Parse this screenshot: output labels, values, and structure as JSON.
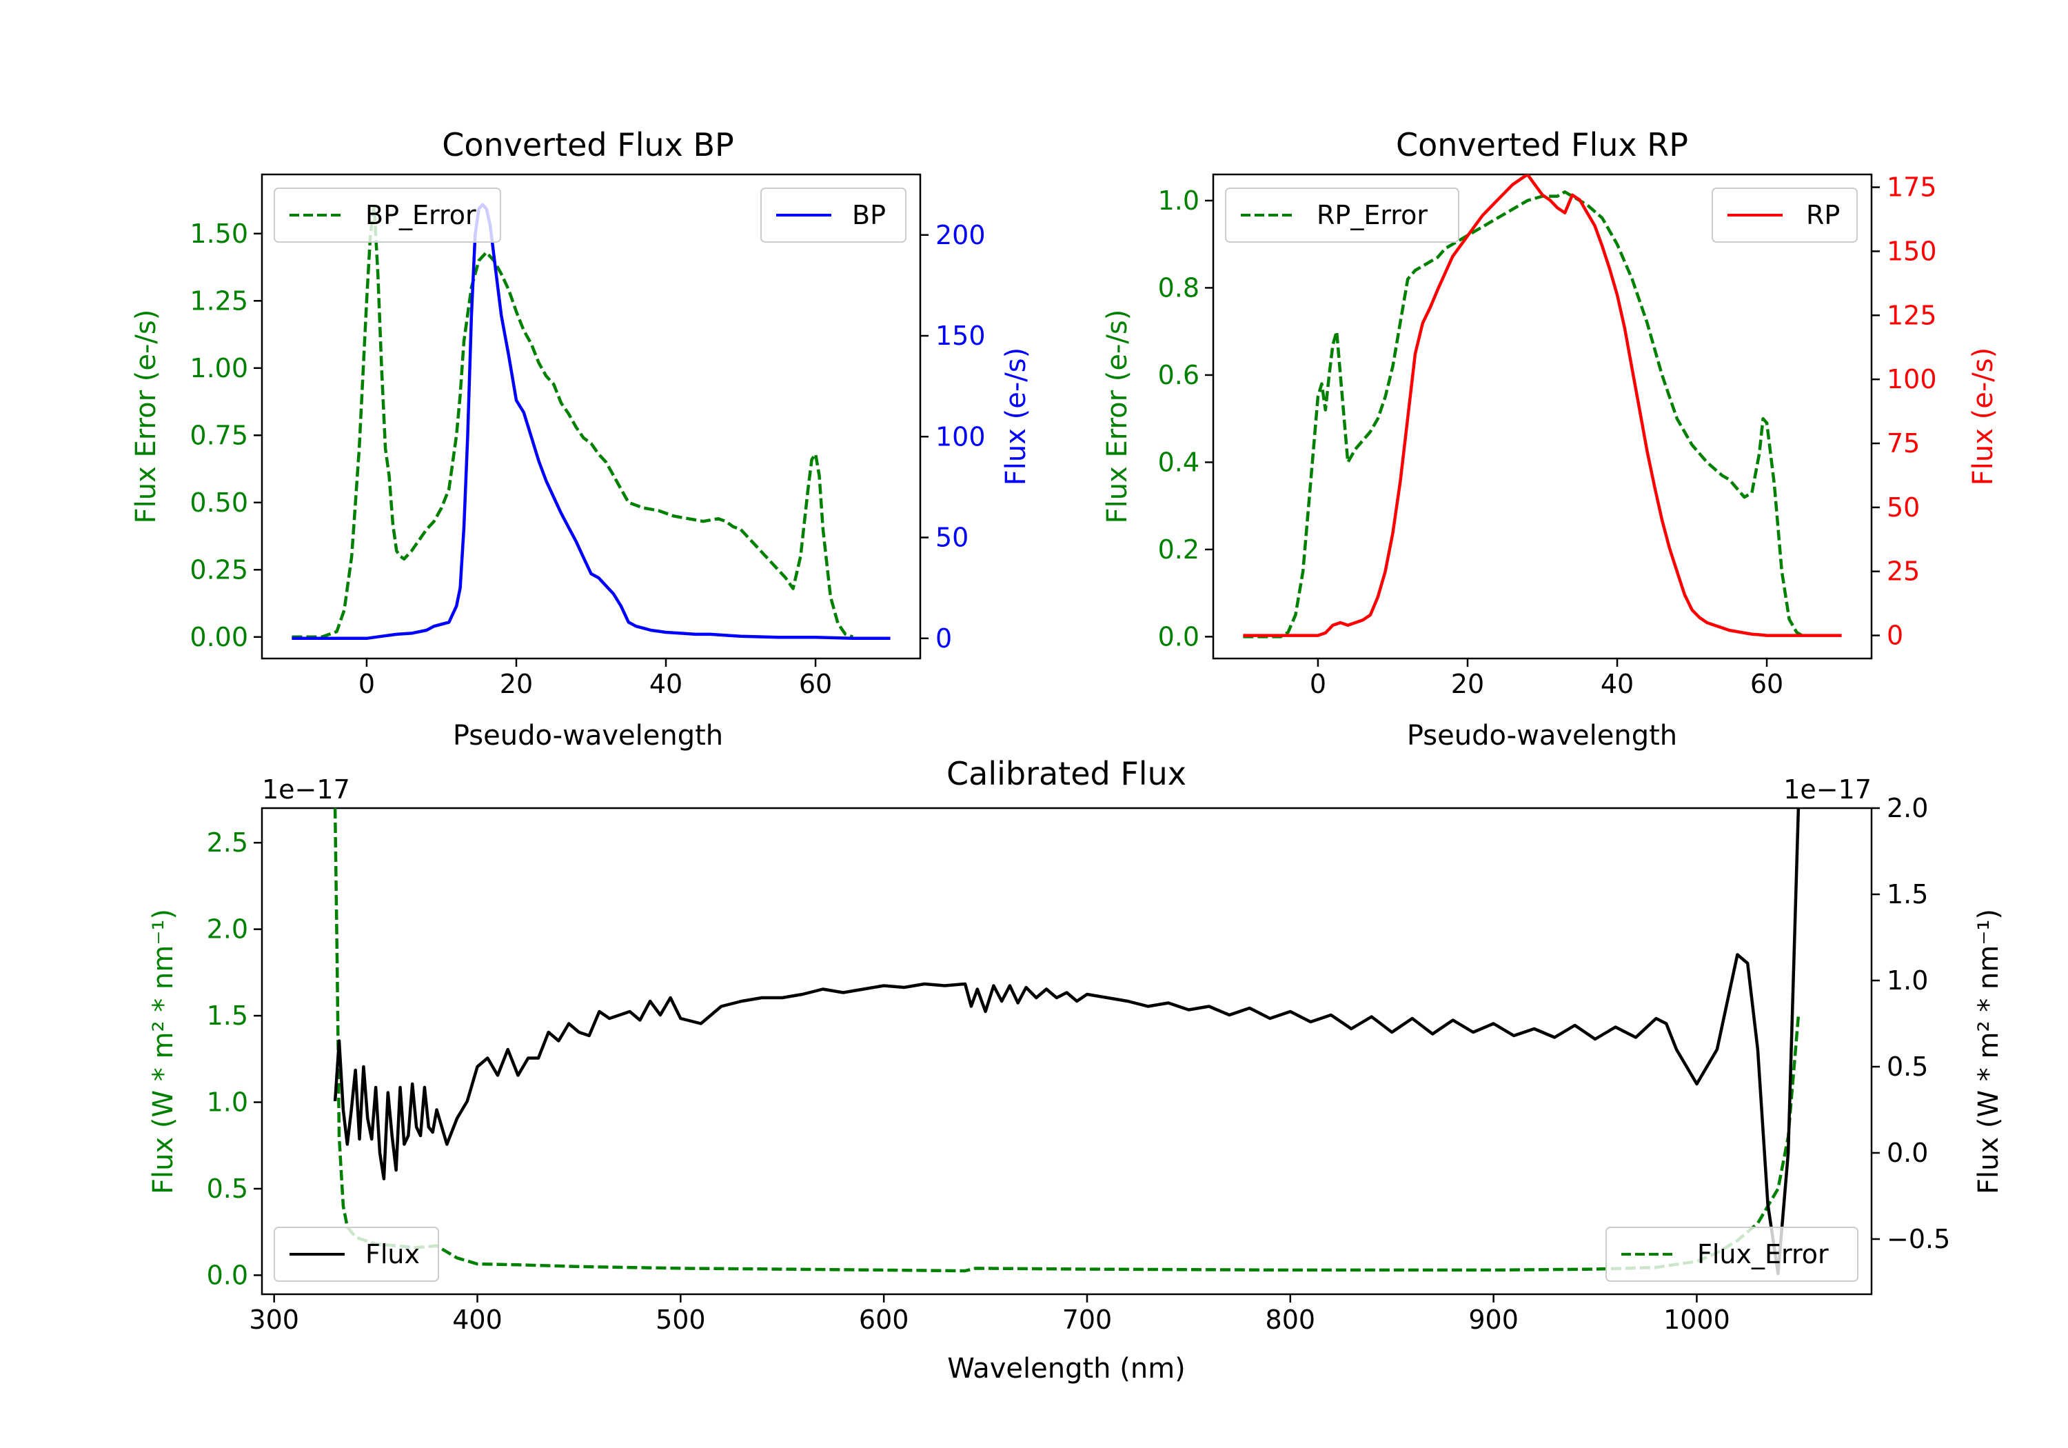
{
  "colors": {
    "bp": "#0000ff",
    "rp": "#ff0000",
    "error": "#008000",
    "flux": "#000000"
  },
  "chart_data": [
    {
      "id": "bp",
      "type": "line",
      "title": "Converted Flux BP",
      "xlabel": "Pseudo-wavelength",
      "ylabel_left": "Flux Error (e-/s)",
      "ylabel_right": "Flux (e-/s)",
      "xlim": [
        -14,
        74
      ],
      "ylim_left": [
        -0.08,
        1.72
      ],
      "ylim_right": [
        -10,
        230
      ],
      "xticks": [
        0,
        20,
        40,
        60
      ],
      "yticks_left": [
        "0.00",
        "0.25",
        "0.50",
        "0.75",
        "1.00",
        "1.25",
        "1.50"
      ],
      "yticks_right": [
        "0",
        "50",
        "100",
        "150",
        "200"
      ],
      "left_legend": "BP_Error",
      "right_legend": "BP",
      "series": [
        {
          "name": "BP_Error",
          "axis": "left",
          "style": "dashed",
          "color": "#008000",
          "x": [
            -10,
            -6,
            -4,
            -3,
            -2,
            -1,
            0,
            0.5,
            1,
            1.5,
            2,
            2.5,
            3,
            3.5,
            4,
            4.5,
            5,
            6,
            7,
            8,
            9,
            10,
            11,
            12,
            12.5,
            13,
            14,
            15,
            16,
            17,
            18,
            19,
            20,
            21,
            22,
            23,
            24,
            25,
            26,
            27,
            28,
            29,
            30,
            31,
            32,
            33,
            34,
            35,
            36,
            37,
            38,
            39,
            40,
            41,
            42,
            43,
            44,
            45,
            46,
            47,
            48,
            49,
            50,
            51,
            52,
            53,
            54,
            55,
            56,
            57,
            58,
            59,
            59.5,
            60,
            60.5,
            61,
            62,
            63,
            64,
            65
          ],
          "y": [
            0.0,
            0.0,
            0.02,
            0.1,
            0.3,
            0.7,
            1.25,
            1.5,
            1.6,
            1.35,
            1.0,
            0.7,
            0.6,
            0.42,
            0.32,
            0.3,
            0.29,
            0.32,
            0.36,
            0.4,
            0.43,
            0.48,
            0.55,
            0.75,
            0.9,
            1.1,
            1.3,
            1.4,
            1.43,
            1.4,
            1.35,
            1.29,
            1.21,
            1.14,
            1.09,
            1.02,
            0.97,
            0.94,
            0.87,
            0.83,
            0.78,
            0.74,
            0.72,
            0.68,
            0.65,
            0.6,
            0.55,
            0.5,
            0.49,
            0.48,
            0.475,
            0.47,
            0.46,
            0.45,
            0.445,
            0.44,
            0.435,
            0.43,
            0.435,
            0.44,
            0.43,
            0.41,
            0.4,
            0.37,
            0.34,
            0.31,
            0.28,
            0.25,
            0.22,
            0.18,
            0.3,
            0.55,
            0.66,
            0.68,
            0.6,
            0.4,
            0.15,
            0.05,
            0.01,
            0.0
          ]
        },
        {
          "name": "BP",
          "axis": "right",
          "style": "solid",
          "color": "#0000ff",
          "x": [
            -10,
            0,
            2,
            4,
            6,
            8,
            9,
            10,
            11,
            12,
            12.5,
            13,
            13.5,
            14,
            14.5,
            15,
            15.5,
            16,
            16.5,
            17,
            17.5,
            18,
            19,
            20,
            21,
            22,
            23,
            24,
            25,
            26,
            27,
            28,
            29,
            30,
            31,
            32,
            33,
            34,
            35,
            36,
            37,
            38,
            40,
            42,
            44,
            46,
            48,
            50,
            55,
            60,
            65,
            70
          ],
          "y": [
            0,
            0,
            1,
            2,
            2.5,
            4,
            6,
            7,
            8,
            16,
            25,
            55,
            100,
            160,
            200,
            213,
            215,
            213,
            205,
            190,
            175,
            160,
            140,
            118,
            112,
            100,
            88,
            78,
            70,
            62,
            55,
            48,
            40,
            32,
            30,
            26,
            22,
            16,
            8,
            6,
            5,
            4,
            3,
            2.5,
            2,
            2,
            1.5,
            1,
            0.5,
            0.5,
            0,
            0
          ]
        }
      ]
    },
    {
      "id": "rp",
      "type": "line",
      "title": "Converted Flux RP",
      "xlabel": "Pseudo-wavelength",
      "ylabel_left": "Flux Error (e-/s)",
      "ylabel_right": "Flux (e-/s)",
      "xlim": [
        -14,
        74
      ],
      "ylim_left": [
        -0.05,
        1.06
      ],
      "ylim_right": [
        -9,
        180
      ],
      "xticks": [
        0,
        20,
        40,
        60
      ],
      "yticks_left": [
        "0.0",
        "0.2",
        "0.4",
        "0.6",
        "0.8",
        "1.0"
      ],
      "yticks_right": [
        "0",
        "25",
        "50",
        "75",
        "100",
        "125",
        "150",
        "175"
      ],
      "left_legend": "RP_Error",
      "right_legend": "RP",
      "series": [
        {
          "name": "RP_Error",
          "axis": "left",
          "style": "dashed",
          "color": "#008000",
          "x": [
            -10,
            -5,
            -4,
            -3,
            -2,
            -1,
            0,
            0.5,
            1,
            1.5,
            2,
            2.5,
            3,
            3.5,
            4,
            5,
            6,
            7,
            8,
            9,
            10,
            11,
            12,
            13,
            14,
            15,
            16,
            17,
            18,
            19,
            20,
            22,
            24,
            26,
            28,
            30,
            32,
            33,
            34,
            35,
            36,
            38,
            40,
            42,
            44,
            46,
            48,
            50,
            52,
            54,
            55,
            56,
            57,
            58,
            59,
            59.5,
            60,
            61,
            62,
            63,
            64,
            65
          ],
          "y": [
            0.0,
            0.0,
            0.01,
            0.05,
            0.15,
            0.35,
            0.55,
            0.58,
            0.52,
            0.6,
            0.67,
            0.7,
            0.6,
            0.5,
            0.4,
            0.43,
            0.45,
            0.47,
            0.5,
            0.55,
            0.62,
            0.72,
            0.82,
            0.84,
            0.85,
            0.86,
            0.87,
            0.89,
            0.9,
            0.91,
            0.92,
            0.94,
            0.96,
            0.98,
            1.0,
            1.01,
            1.01,
            1.02,
            1.01,
            1.0,
            0.99,
            0.96,
            0.9,
            0.82,
            0.72,
            0.6,
            0.5,
            0.44,
            0.4,
            0.37,
            0.36,
            0.34,
            0.32,
            0.33,
            0.42,
            0.5,
            0.49,
            0.35,
            0.15,
            0.04,
            0.01,
            0.0
          ]
        },
        {
          "name": "RP",
          "axis": "right",
          "style": "solid",
          "color": "#ff0000",
          "x": [
            -10,
            0,
            1,
            2,
            3,
            4,
            5,
            6,
            7,
            8,
            9,
            10,
            11,
            12,
            13,
            14,
            15,
            16,
            18,
            20,
            22,
            24,
            26,
            28,
            30,
            31,
            32,
            33,
            34,
            35,
            36,
            37,
            38,
            39,
            40,
            41,
            42,
            43,
            44,
            45,
            46,
            47,
            48,
            49,
            50,
            51,
            52,
            53,
            54,
            55,
            56,
            57,
            58,
            59,
            60,
            65,
            70
          ],
          "y": [
            0,
            0,
            1,
            4,
            5,
            4,
            5,
            6,
            8,
            15,
            25,
            40,
            60,
            85,
            110,
            122,
            128,
            135,
            148,
            156,
            164,
            170,
            176,
            180,
            172,
            170,
            167,
            165,
            172,
            170,
            165,
            160,
            152,
            143,
            133,
            120,
            104,
            88,
            72,
            58,
            45,
            34,
            25,
            16,
            10,
            7,
            5,
            4,
            3,
            2,
            1.5,
            1,
            0.5,
            0.3,
            0,
            0,
            0
          ]
        }
      ]
    },
    {
      "id": "calibrated",
      "type": "line",
      "title": "Calibrated Flux",
      "xlabel": "Wavelength (nm)",
      "ylabel_left": "Flux (W * m² * nm⁻¹)",
      "ylabel_right": "Flux (W * m² * nm⁻¹)",
      "offset_left": "1e−17",
      "offset_right": "1e−17",
      "xlim": [
        294,
        1086
      ],
      "ylim_left": [
        -0.11,
        2.7
      ],
      "ylim_right": [
        -0.82,
        2.0
      ],
      "xticks": [
        300,
        400,
        500,
        600,
        700,
        800,
        900,
        1000
      ],
      "yticks_left": [
        "0.0",
        "0.5",
        "1.0",
        "1.5",
        "2.0",
        "2.5"
      ],
      "yticks_right": [
        "−0.5",
        "0.0",
        "0.5",
        "1.0",
        "1.5",
        "2.0"
      ],
      "left_legend": "Flux",
      "right_legend": "Flux_Error",
      "series": [
        {
          "name": "Flux_Error",
          "axis": "left",
          "style": "dashed",
          "color": "#008000",
          "x": [
            330,
            331,
            332,
            334,
            336,
            340,
            345,
            350,
            360,
            370,
            380,
            390,
            400,
            420,
            450,
            500,
            550,
            600,
            640,
            645,
            700,
            800,
            900,
            950,
            980,
            1000,
            1010,
            1020,
            1030,
            1040,
            1045,
            1050
          ],
          "y": [
            2.7,
            1.8,
            0.8,
            0.4,
            0.28,
            0.22,
            0.2,
            0.18,
            0.17,
            0.16,
            0.17,
            0.1,
            0.065,
            0.06,
            0.05,
            0.04,
            0.035,
            0.03,
            0.025,
            0.04,
            0.035,
            0.03,
            0.03,
            0.035,
            0.045,
            0.08,
            0.13,
            0.2,
            0.3,
            0.5,
            0.8,
            1.5
          ]
        },
        {
          "name": "Flux",
          "axis": "right",
          "style": "solid",
          "color": "#000000",
          "x": [
            330,
            332,
            334,
            336,
            338,
            340,
            342,
            344,
            346,
            348,
            350,
            352,
            354,
            356,
            358,
            360,
            362,
            364,
            366,
            368,
            370,
            372,
            374,
            376,
            378,
            380,
            385,
            390,
            395,
            400,
            405,
            410,
            415,
            420,
            425,
            430,
            435,
            440,
            445,
            450,
            455,
            460,
            465,
            470,
            475,
            480,
            485,
            490,
            495,
            500,
            510,
            520,
            530,
            540,
            550,
            560,
            570,
            580,
            590,
            600,
            610,
            620,
            630,
            640,
            643,
            646,
            650,
            654,
            658,
            662,
            666,
            670,
            675,
            680,
            685,
            690,
            695,
            700,
            710,
            720,
            730,
            740,
            750,
            760,
            770,
            780,
            790,
            800,
            810,
            820,
            830,
            840,
            850,
            860,
            870,
            880,
            890,
            900,
            910,
            920,
            930,
            940,
            950,
            960,
            970,
            980,
            985,
            990,
            1000,
            1010,
            1020,
            1025,
            1030,
            1035,
            1040,
            1045,
            1050
          ],
          "y": [
            0.3,
            0.65,
            0.25,
            0.05,
            0.25,
            0.48,
            0.08,
            0.5,
            0.2,
            0.08,
            0.38,
            0.0,
            -0.15,
            0.35,
            0.1,
            -0.1,
            0.38,
            0.05,
            0.1,
            0.4,
            0.15,
            0.1,
            0.38,
            0.15,
            0.12,
            0.25,
            0.05,
            0.2,
            0.3,
            0.5,
            0.55,
            0.45,
            0.6,
            0.45,
            0.55,
            0.55,
            0.7,
            0.65,
            0.75,
            0.7,
            0.68,
            0.82,
            0.78,
            0.8,
            0.82,
            0.77,
            0.88,
            0.8,
            0.9,
            0.78,
            0.75,
            0.85,
            0.88,
            0.9,
            0.9,
            0.92,
            0.95,
            0.93,
            0.95,
            0.97,
            0.96,
            0.98,
            0.97,
            0.98,
            0.85,
            0.95,
            0.82,
            0.97,
            0.88,
            0.97,
            0.87,
            0.96,
            0.9,
            0.95,
            0.9,
            0.93,
            0.88,
            0.92,
            0.9,
            0.88,
            0.85,
            0.87,
            0.83,
            0.85,
            0.8,
            0.84,
            0.78,
            0.82,
            0.76,
            0.8,
            0.72,
            0.79,
            0.7,
            0.78,
            0.69,
            0.77,
            0.7,
            0.75,
            0.68,
            0.72,
            0.67,
            0.74,
            0.66,
            0.73,
            0.67,
            0.78,
            0.75,
            0.6,
            0.4,
            0.6,
            1.15,
            1.1,
            0.6,
            -0.3,
            -0.7,
            0.0,
            2.0
          ]
        }
      ]
    }
  ]
}
